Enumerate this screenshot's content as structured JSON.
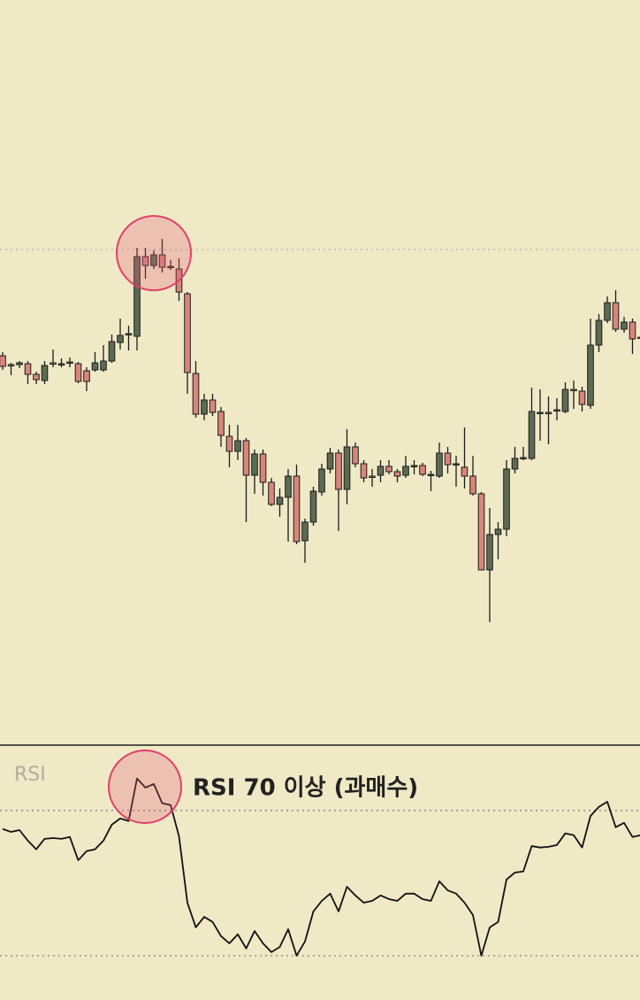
{
  "chart_data": [
    {
      "type": "candlestick",
      "up_color": "#5d6b55",
      "down_color": "#d9867a",
      "ylim": [
        0,
        840
      ],
      "levels": [
        558
      ],
      "open": [
        438,
        428,
        428,
        429,
        417,
        410,
        430,
        429,
        430,
        429,
        421,
        422,
        422,
        432,
        453,
        463,
        460,
        550,
        540,
        552,
        539,
        536,
        508,
        418,
        372,
        388,
        375,
        347,
        330,
        342,
        303,
        327,
        295,
        270,
        278,
        302,
        229,
        250,
        284,
        310,
        328,
        287,
        335,
        316,
        302,
        303,
        313,
        307,
        303,
        314,
        314,
        304,
        302,
        328,
        316,
        312,
        302,
        282,
        196,
        236,
        242,
        310,
        323,
        322,
        374,
        374,
        376,
        375,
        400,
        398,
        382,
        450,
        478,
        498,
        468,
        476,
        459
      ],
      "high": [
        442,
        430,
        432,
        432,
        420,
        432,
        445,
        435,
        436,
        431,
        425,
        442,
        450,
        462,
        480,
        472,
        560,
        560,
        557,
        570,
        546,
        548,
        510,
        432,
        395,
        395,
        380,
        360,
        360,
        345,
        332,
        332,
        300,
        288,
        310,
        315,
        254,
        290,
        316,
        334,
        332,
        355,
        340,
        320,
        310,
        320,
        320,
        310,
        325,
        320,
        317,
        308,
        340,
        335,
        325,
        357,
        325,
        284,
        266,
        250,
        320,
        335,
        335,
        402,
        400,
        392,
        390,
        408,
        410,
        403,
        480,
        485,
        505,
        512,
        482,
        480,
        462
      ],
      "low": [
        422,
        416,
        424,
        406,
        406,
        406,
        425,
        425,
        425,
        407,
        398,
        420,
        420,
        430,
        445,
        444,
        444,
        525,
        536,
        532,
        535,
        500,
        395,
        368,
        365,
        370,
        335,
        312,
        320,
        250,
        282,
        280,
        268,
        256,
        228,
        225,
        204,
        246,
        280,
        305,
        240,
        270,
        312,
        295,
        290,
        295,
        304,
        295,
        300,
        304,
        302,
        285,
        300,
        305,
        290,
        288,
        280,
        196,
        137,
        208,
        234,
        305,
        320,
        320,
        342,
        338,
        365,
        373,
        378,
        375,
        378,
        442,
        475,
        465,
        464,
        440,
        456
      ],
      "close": [
        426,
        427,
        430,
        417,
        411,
        427,
        429,
        429,
        431,
        409,
        409,
        430,
        432,
        454,
        461,
        463,
        550,
        540,
        552,
        538,
        539,
        510,
        419,
        372,
        388,
        374,
        348,
        330,
        342,
        303,
        327,
        295,
        270,
        278,
        302,
        228,
        250,
        285,
        310,
        328,
        287,
        335,
        316,
        300,
        301,
        313,
        307,
        302,
        313,
        314,
        304,
        304,
        328,
        315,
        316,
        302,
        282,
        196,
        236,
        242,
        310,
        322,
        323,
        375,
        374,
        373,
        377,
        400,
        399,
        383,
        450,
        478,
        498,
        468,
        476,
        457,
        459
      ]
    },
    {
      "type": "line",
      "label": "RSI",
      "annotation": "RSI 70 이상 (과매수)",
      "color": "#111111",
      "ylim": [
        17.8,
        88
      ],
      "levels": [
        70,
        30
      ],
      "values": [
        64.9,
        64.1,
        64.6,
        61.7,
        59.3,
        62.2,
        62.4,
        62.2,
        62.7,
        56.3,
        58.8,
        59.3,
        61.7,
        66.1,
        67.8,
        67.1,
        78.8,
        76.3,
        77.3,
        72.0,
        71.5,
        62.9,
        44.6,
        37.8,
        40.7,
        39.3,
        35.4,
        33.4,
        35.9,
        32.0,
        36.8,
        33.4,
        31.0,
        32.4,
        37.3,
        30.0,
        33.9,
        42.2,
        45.1,
        47.1,
        42.2,
        49.0,
        46.6,
        44.6,
        45.1,
        46.6,
        45.6,
        45.1,
        47.1,
        47.1,
        45.6,
        45.1,
        50.5,
        48.0,
        47.1,
        44.6,
        41.2,
        30.0,
        37.8,
        39.3,
        51.0,
        52.9,
        53.2,
        60.2,
        59.8,
        60.0,
        60.5,
        63.7,
        63.2,
        59.8,
        68.5,
        71.0,
        72.4,
        65.4,
        66.6,
        62.7,
        63.2
      ]
    }
  ]
}
